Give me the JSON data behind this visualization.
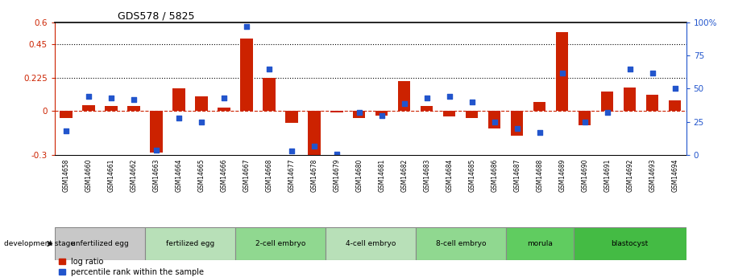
{
  "title": "GDS578 / 5825",
  "samples": [
    "GSM14658",
    "GSM14660",
    "GSM14661",
    "GSM14662",
    "GSM14663",
    "GSM14664",
    "GSM14665",
    "GSM14666",
    "GSM14667",
    "GSM14668",
    "GSM14677",
    "GSM14678",
    "GSM14679",
    "GSM14680",
    "GSM14681",
    "GSM14682",
    "GSM14683",
    "GSM14684",
    "GSM14685",
    "GSM14686",
    "GSM14687",
    "GSM14688",
    "GSM14689",
    "GSM14690",
    "GSM14691",
    "GSM14692",
    "GSM14693",
    "GSM14694"
  ],
  "log_ratio": [
    -0.05,
    0.04,
    0.03,
    0.03,
    -0.28,
    0.15,
    0.1,
    0.02,
    0.49,
    0.225,
    -0.08,
    -0.32,
    -0.01,
    -0.05,
    -0.03,
    0.2,
    0.03,
    -0.04,
    -0.05,
    -0.12,
    -0.17,
    0.06,
    0.53,
    -0.1,
    0.13,
    0.16,
    0.11,
    0.07
  ],
  "pct_rank": [
    18,
    44,
    43,
    42,
    4,
    28,
    25,
    43,
    97,
    65,
    3,
    7,
    1,
    32,
    30,
    39,
    43,
    44,
    40,
    25,
    20,
    17,
    62,
    25,
    32,
    65,
    62,
    50
  ],
  "stages": [
    {
      "name": "unfertilized egg",
      "start": 0,
      "end": 4,
      "color": "#c8c8c8"
    },
    {
      "name": "fertilized egg",
      "start": 4,
      "end": 8,
      "color": "#b8e0b8"
    },
    {
      "name": "2-cell embryo",
      "start": 8,
      "end": 12,
      "color": "#90d890"
    },
    {
      "name": "4-cell embryo",
      "start": 12,
      "end": 16,
      "color": "#b8e0b8"
    },
    {
      "name": "8-cell embryo",
      "start": 16,
      "end": 20,
      "color": "#90d890"
    },
    {
      "name": "morula",
      "start": 20,
      "end": 23,
      "color": "#60cc60"
    },
    {
      "name": "blastocyst",
      "start": 23,
      "end": 28,
      "color": "#44bb44"
    }
  ],
  "ylim_left": [
    -0.3,
    0.6
  ],
  "ylim_right": [
    0,
    100
  ],
  "yticks_left": [
    -0.3,
    0,
    0.225,
    0.45,
    0.6
  ],
  "ytick_labels_left": [
    "-0.3",
    "0",
    "0.225",
    "0.45",
    "0.6"
  ],
  "yticks_right": [
    0,
    25,
    50,
    75,
    100
  ],
  "ytick_labels_right": [
    "0",
    "25",
    "50",
    "75",
    "100%"
  ],
  "dotted_lines": [
    0.225,
    0.45
  ],
  "bar_color": "#cc2200",
  "dot_color": "#2255cc",
  "background_color": "#ffffff",
  "tick_bg_color": "#c8c8c8",
  "stage_border_color": "#888888"
}
